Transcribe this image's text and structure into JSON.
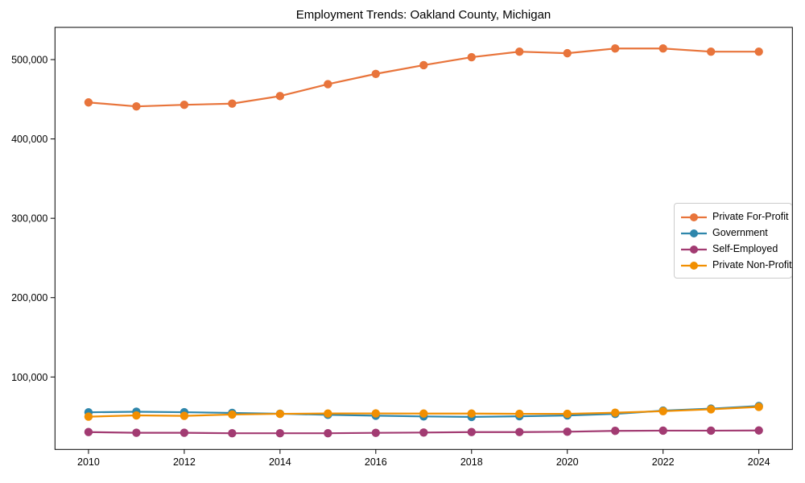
{
  "window": {
    "background": "#ffffff"
  },
  "chart_data": {
    "type": "line",
    "title": "Employment Trends: Oakland County, Michigan",
    "xlabel": "",
    "ylabel": "",
    "grid": false,
    "legend_position": "center right",
    "xlim": [
      2009.3,
      2024.7
    ],
    "ylim": [
      8700,
      540600
    ],
    "x_ticks": [
      2010,
      2012,
      2014,
      2016,
      2018,
      2020,
      2022,
      2024
    ],
    "x_tick_labels": [
      "2010",
      "2012",
      "2014",
      "2016",
      "2018",
      "2020",
      "2022",
      "2024"
    ],
    "y_ticks": [
      100000,
      200000,
      300000,
      400000,
      500000
    ],
    "y_tick_labels": [
      "100,000",
      "200,000",
      "300,000",
      "400,000",
      "500,000"
    ],
    "x": [
      2010,
      2011,
      2012,
      2013,
      2014,
      2015,
      2016,
      2017,
      2018,
      2019,
      2020,
      2021,
      2022,
      2023,
      2024
    ],
    "series": [
      {
        "name": "Private For-Profit",
        "color": "#E8743B",
        "values": [
          446000,
          441000,
          443000,
          444500,
          454000,
          469000,
          482000,
          493000,
          503000,
          510000,
          508000,
          514000,
          514000,
          510000,
          510000
        ]
      },
      {
        "name": "Government",
        "color": "#2E86AB",
        "values": [
          55500,
          56200,
          55600,
          54700,
          53700,
          52300,
          51200,
          50300,
          49700,
          50500,
          51500,
          53500,
          57600,
          60100,
          63400
        ]
      },
      {
        "name": "Self-Employed",
        "color": "#A23B72",
        "values": [
          30600,
          29700,
          29700,
          29100,
          29100,
          29100,
          29600,
          30000,
          30600,
          30600,
          31000,
          32100,
          32400,
          32400,
          32600
        ]
      },
      {
        "name": "Private Non-Profit",
        "color": "#F18F01",
        "values": [
          50000,
          51600,
          51000,
          52700,
          53600,
          54000,
          54100,
          53900,
          53900,
          53600,
          53600,
          55000,
          56900,
          59300,
          62300
        ]
      }
    ]
  }
}
